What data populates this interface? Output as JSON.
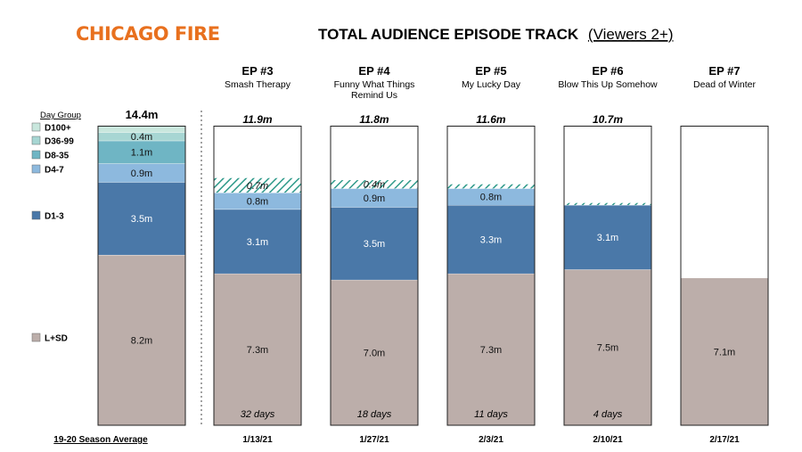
{
  "header": {
    "logo_text": "CHICAGO FIRE",
    "title": "TOTAL AUDIENCE EPISODE TRACK",
    "title_suffix": "(Viewers 2+)"
  },
  "colors": {
    "logo": "#e8701e",
    "lsd": "#bcaeaa",
    "d1_3": "#4a78a8",
    "d4_7": "#8db9de",
    "d8_35": "#6fb5c4",
    "d36_99": "#a7d6d3",
    "d100": "#c9e7dd",
    "hatch": "#2f9a8a",
    "border": "#222222"
  },
  "chart_data": {
    "type": "bar",
    "stacked": true,
    "unit": "m",
    "legend_title": "Day Group",
    "layers": [
      "L+SD",
      "D1-3",
      "D4-7",
      "D8-35",
      "D36-99",
      "D100+"
    ],
    "average": {
      "total_label": "14.4m",
      "footer": "19-20 Season Average",
      "segments": [
        {
          "layer": "L+SD",
          "value": 8.2,
          "label": "8.2m"
        },
        {
          "layer": "D1-3",
          "value": 3.5,
          "label": "3.5m"
        },
        {
          "layer": "D4-7",
          "value": 0.9,
          "label": "0.9m"
        },
        {
          "layer": "D8-35",
          "value": 1.1,
          "label": "1.1m"
        },
        {
          "layer": "D36-99",
          "value": 0.4,
          "label": "0.4m"
        },
        {
          "layer": "D100+",
          "value": 0.3,
          "label": ""
        }
      ]
    },
    "episodes": [
      {
        "ep": "EP #3",
        "name": "Smash Therapy",
        "total_label": "11.9m",
        "days": "32 days",
        "date": "1/13/21",
        "segments": [
          {
            "layer": "L+SD",
            "value": 7.3,
            "label": "7.3m"
          },
          {
            "layer": "D1-3",
            "value": 3.1,
            "label": "3.1m"
          },
          {
            "layer": "D4-7",
            "value": 0.8,
            "label": "0.8m"
          },
          {
            "layer": "D8-35",
            "value": 0.7,
            "label": "0.7m",
            "hatched": true
          }
        ]
      },
      {
        "ep": "EP #4",
        "name": "Funny What Things Remind Us",
        "total_label": "11.8m",
        "days": "18 days",
        "date": "1/27/21",
        "segments": [
          {
            "layer": "L+SD",
            "value": 7.0,
            "label": "7.0m"
          },
          {
            "layer": "D1-3",
            "value": 3.5,
            "label": "3.5m"
          },
          {
            "layer": "D4-7",
            "value": 0.9,
            "label": "0.9m"
          },
          {
            "layer": "D8-35",
            "value": 0.4,
            "label": "0.4m",
            "hatched": true
          }
        ]
      },
      {
        "ep": "EP #5",
        "name": "My Lucky Day",
        "total_label": "11.6m",
        "days": "11 days",
        "date": "2/3/21",
        "segments": [
          {
            "layer": "L+SD",
            "value": 7.3,
            "label": "7.3m"
          },
          {
            "layer": "D1-3",
            "value": 3.3,
            "label": "3.3m"
          },
          {
            "layer": "D4-7",
            "value": 0.8,
            "label": "0.8m"
          },
          {
            "layer": "D8-35",
            "value": 0.2,
            "label": "",
            "hatched": true
          }
        ]
      },
      {
        "ep": "EP #6",
        "name": "Blow This Up Somehow",
        "total_label": "10.7m",
        "days": "4 days",
        "date": "2/10/21",
        "segments": [
          {
            "layer": "L+SD",
            "value": 7.5,
            "label": "7.5m"
          },
          {
            "layer": "D1-3",
            "value": 3.1,
            "label": "3.1m"
          },
          {
            "layer": "D4-7",
            "value": 0.1,
            "label": "",
            "hatched": true
          }
        ]
      },
      {
        "ep": "EP #7",
        "name": "Dead of Winter",
        "total_label": "",
        "days": "",
        "date": "2/17/21",
        "segments": [
          {
            "layer": "L+SD",
            "value": 7.1,
            "label": "7.1m"
          }
        ]
      }
    ]
  }
}
